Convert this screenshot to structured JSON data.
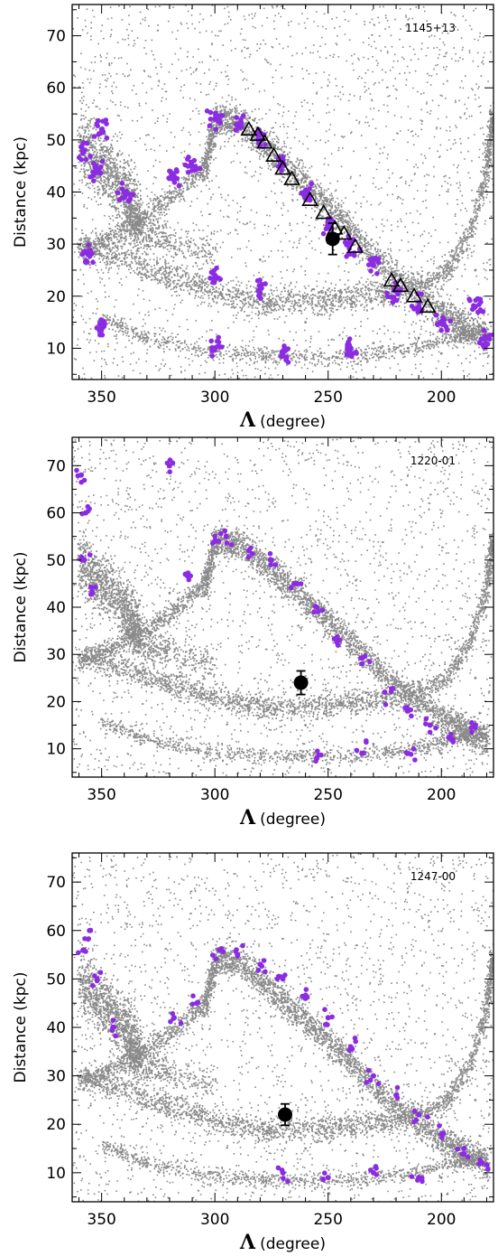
{
  "figure": {
    "panels": [
      "panel_1",
      "panel_2",
      "panel_3"
    ]
  },
  "chart_data": [
    {
      "type": "scatter",
      "field_label": "1145+13",
      "xlabel": {
        "symbol": "Λ",
        "text": "(degree)"
      },
      "ylabel": "Distance (kpc)",
      "xlim": [
        363,
        177
      ],
      "ylim": [
        4,
        76
      ],
      "x_ticks": [
        350,
        300,
        250,
        200
      ],
      "y_ticks": [
        10,
        20,
        30,
        40,
        50,
        60,
        70
      ],
      "grid": false,
      "legend": "none",
      "colors": {
        "model": "#8a8a8a",
        "highlight": "#8b2be2",
        "marker": "#000000"
      },
      "series": [
        {
          "role": "model particles (gray)",
          "representative_points": [
            [
              355,
              47
            ],
            [
              340,
              38
            ],
            [
              320,
              43
            ],
            [
              300,
              55
            ],
            [
              280,
              50
            ],
            [
              260,
              42
            ],
            [
              240,
              32
            ],
            [
              220,
              24
            ],
            [
              200,
              16
            ],
            [
              185,
              25
            ],
            [
              180,
              45
            ],
            [
              320,
              22
            ],
            [
              260,
              15
            ],
            [
              230,
              11
            ],
            [
              200,
              9
            ],
            [
              340,
              30
            ],
            [
              300,
              20
            ],
            [
              280,
              27
            ],
            [
              250,
              20
            ],
            [
              210,
              12
            ]
          ]
        },
        {
          "role": "highlighted particles (purple)",
          "representative_points": [
            [
              358,
              48
            ],
            [
              352,
              44
            ],
            [
              356,
              28
            ],
            [
              350,
              52
            ],
            [
              340,
              40
            ],
            [
              318,
              43
            ],
            [
              310,
              45
            ],
            [
              300,
              54
            ],
            [
              290,
              53
            ],
            [
              280,
              50
            ],
            [
              270,
              46
            ],
            [
              260,
              40
            ],
            [
              250,
              34
            ],
            [
              240,
              30
            ],
            [
              230,
              26
            ],
            [
              220,
              21
            ],
            [
              210,
              18
            ],
            [
              200,
              15
            ],
            [
              185,
              18
            ],
            [
              180,
              12
            ],
            [
              350,
              14
            ],
            [
              300,
              10
            ],
            [
              270,
              9
            ],
            [
              240,
              10
            ],
            [
              300,
              24
            ],
            [
              280,
              22
            ]
          ]
        },
        {
          "role": "triangles",
          "points": [
            [
              285,
              52
            ],
            [
              281,
              51
            ],
            [
              278,
              49.5
            ],
            [
              274,
              47
            ],
            [
              270,
              44.5
            ],
            [
              266,
              42.5
            ],
            [
              258,
              38.5
            ],
            [
              252,
              36
            ],
            [
              247,
              33
            ],
            [
              243,
              32
            ],
            [
              238,
              29.5
            ],
            [
              222,
              23
            ],
            [
              218,
              22
            ],
            [
              212,
              20
            ],
            [
              206,
              18
            ]
          ]
        },
        {
          "role": "filled circle with error bar",
          "points": [
            [
              248,
              31
            ]
          ],
          "yerr": [
            [
              3,
              3
            ]
          ]
        }
      ]
    },
    {
      "type": "scatter",
      "field_label": "1220-01",
      "xlabel": {
        "symbol": "Λ",
        "text": "(degree)"
      },
      "ylabel": "Distance (kpc)",
      "xlim": [
        363,
        177
      ],
      "ylim": [
        4,
        76
      ],
      "x_ticks": [
        350,
        300,
        250,
        200
      ],
      "y_ticks": [
        10,
        20,
        30,
        40,
        50,
        60,
        70
      ],
      "grid": false,
      "legend": "none",
      "colors": {
        "model": "#8a8a8a",
        "highlight": "#8b2be2",
        "marker": "#000000"
      },
      "series": [
        {
          "role": "model particles (gray)",
          "representative_points": [
            [
              355,
              47
            ],
            [
              340,
              38
            ],
            [
              320,
              43
            ],
            [
              300,
              55
            ],
            [
              280,
              50
            ],
            [
              260,
              42
            ],
            [
              240,
              32
            ],
            [
              220,
              24
            ],
            [
              200,
              16
            ],
            [
              185,
              25
            ],
            [
              180,
              45
            ],
            [
              320,
              22
            ],
            [
              260,
              15
            ],
            [
              230,
              11
            ],
            [
              200,
              9
            ]
          ]
        },
        {
          "role": "highlighted particles (purple)",
          "representative_points": [
            [
              359,
              68
            ],
            [
              357,
              60
            ],
            [
              358,
              50
            ],
            [
              354,
              43
            ],
            [
              320,
              70
            ],
            [
              313,
              47
            ],
            [
              300,
              54
            ],
            [
              295,
              55
            ],
            [
              285,
              52
            ],
            [
              275,
              50
            ],
            [
              265,
              45
            ],
            [
              255,
              40
            ],
            [
              245,
              33
            ],
            [
              235,
              28
            ],
            [
              225,
              22
            ],
            [
              215,
              18
            ],
            [
              205,
              15
            ],
            [
              195,
              12
            ],
            [
              185,
              15
            ],
            [
              255,
              8
            ],
            [
              235,
              9
            ],
            [
              215,
              9
            ]
          ]
        },
        {
          "role": "filled circle with error bar",
          "points": [
            [
              262,
              24
            ]
          ],
          "yerr": [
            [
              2.5,
              2.5
            ]
          ]
        }
      ]
    },
    {
      "type": "scatter",
      "field_label": "1247-00",
      "xlabel": {
        "symbol": "Λ",
        "text": "(degree)"
      },
      "ylabel": "Distance (kpc)",
      "xlim": [
        363,
        177
      ],
      "ylim": [
        4,
        76
      ],
      "x_ticks": [
        350,
        300,
        250,
        200
      ],
      "y_ticks": [
        10,
        20,
        30,
        40,
        50,
        60,
        70
      ],
      "grid": false,
      "legend": "none",
      "colors": {
        "model": "#8a8a8a",
        "highlight": "#8b2be2",
        "marker": "#000000"
      },
      "series": [
        {
          "role": "model particles (gray)",
          "representative_points": [
            [
              355,
              47
            ],
            [
              340,
              38
            ],
            [
              320,
              43
            ],
            [
              300,
              55
            ],
            [
              280,
              50
            ],
            [
              260,
              42
            ],
            [
              240,
              32
            ],
            [
              220,
              24
            ],
            [
              200,
              16
            ],
            [
              185,
              25
            ],
            [
              180,
              45
            ],
            [
              320,
              22
            ],
            [
              260,
              15
            ],
            [
              230,
              11
            ],
            [
              200,
              9
            ]
          ]
        },
        {
          "role": "highlighted particles (purple)",
          "representative_points": [
            [
              358,
              56
            ],
            [
              355,
              60
            ],
            [
              352,
              50
            ],
            [
              345,
              40
            ],
            [
              318,
              42
            ],
            [
              308,
              45
            ],
            [
              298,
              56
            ],
            [
              290,
              55
            ],
            [
              280,
              53
            ],
            [
              270,
              50
            ],
            [
              260,
              46
            ],
            [
              250,
              42
            ],
            [
              240,
              36
            ],
            [
              230,
              30
            ],
            [
              220,
              26
            ],
            [
              210,
              22
            ],
            [
              200,
              18
            ],
            [
              190,
              15
            ],
            [
              182,
              12
            ],
            [
              270,
              10
            ],
            [
              250,
              9
            ],
            [
              230,
              10
            ],
            [
              210,
              9
            ]
          ]
        },
        {
          "role": "filled circle with error bar",
          "points": [
            [
              269,
              22
            ]
          ],
          "yerr": [
            [
              2.2,
              2.2
            ]
          ]
        }
      ]
    }
  ]
}
